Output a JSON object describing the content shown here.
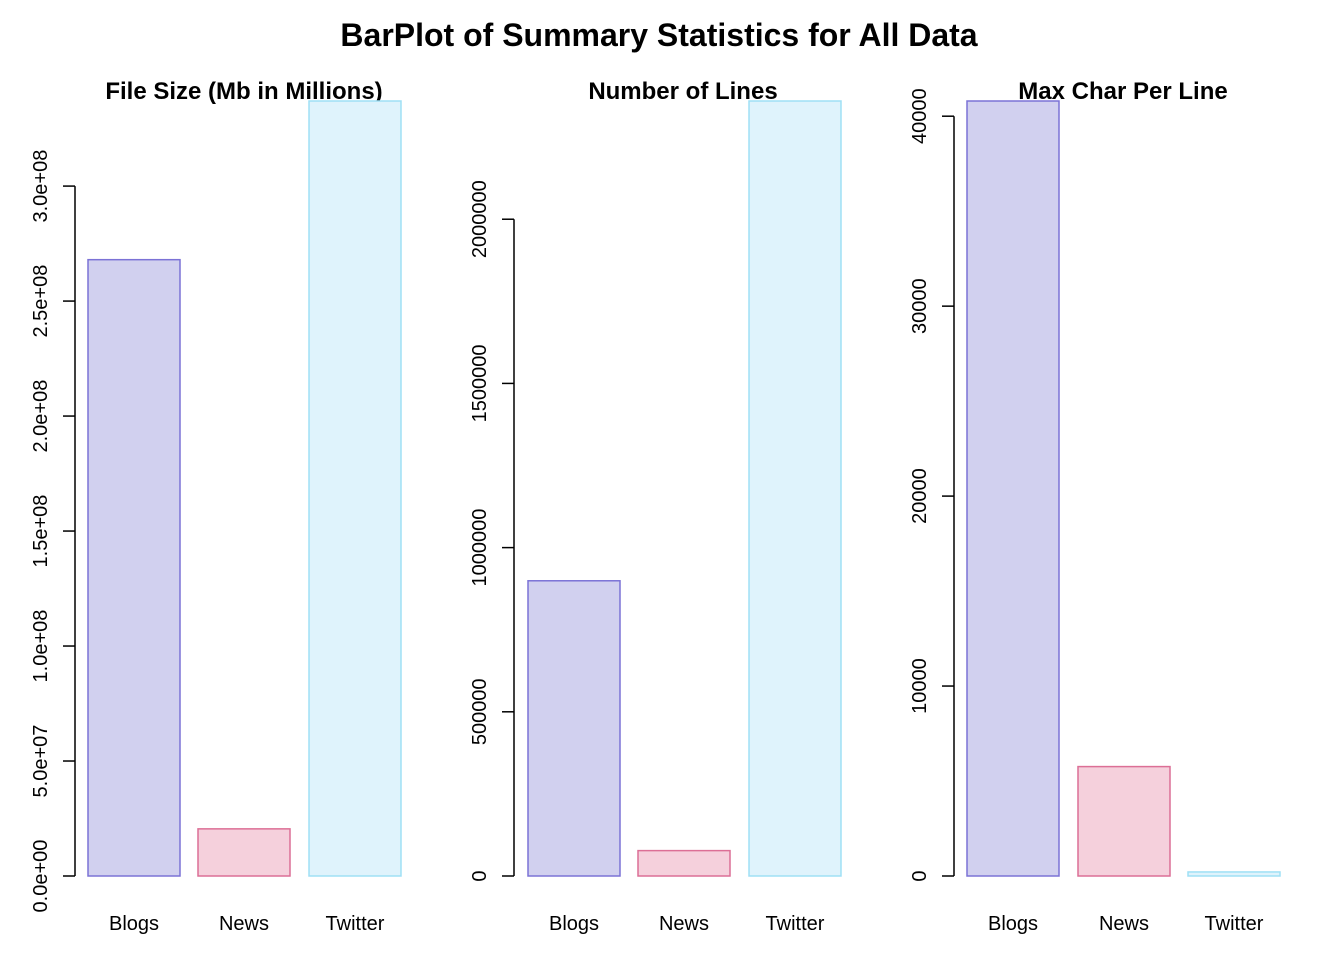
{
  "title": "BarPlot of Summary Statistics for All Data",
  "colors": {
    "blogs_fill": "#d1d0ef",
    "blogs_stroke": "#7b72d6",
    "news_fill": "#f5d0dc",
    "news_stroke": "#dc6f96",
    "twitter_fill": "#dff3fc",
    "twitter_stroke": "#9fe0f5"
  },
  "chart_data": [
    {
      "type": "bar",
      "title": "File Size (Mb in Millions)",
      "categories": [
        "Blogs",
        "News",
        "Twitter"
      ],
      "values": [
        268000000,
        20500000,
        337000000
      ],
      "ylim": [
        0,
        337000000
      ],
      "yticks": [
        0,
        50000000,
        100000000,
        150000000,
        200000000,
        250000000,
        300000000
      ],
      "yticklabels": [
        "0.0e+00",
        "5.0e+07",
        "1.0e+08",
        "1.5e+08",
        "2.0e+08",
        "2.5e+08",
        "3.0e+08"
      ],
      "grid": false
    },
    {
      "type": "bar",
      "title": "Number of Lines",
      "categories": [
        "Blogs",
        "News",
        "Twitter"
      ],
      "values": [
        899000,
        77300,
        2360000
      ],
      "ylim": [
        0,
        2360000
      ],
      "yticks": [
        0,
        500000,
        1000000,
        1500000,
        2000000
      ],
      "yticklabels": [
        "0",
        "500000",
        "1000000",
        "1500000",
        "2000000"
      ],
      "grid": false
    },
    {
      "type": "bar",
      "title": "Max Char Per Line",
      "categories": [
        "Blogs",
        "News",
        "Twitter"
      ],
      "values": [
        40800,
        5760,
        213
      ],
      "ylim": [
        0,
        40800
      ],
      "yticks": [
        0,
        10000,
        20000,
        30000,
        40000
      ],
      "yticklabels": [
        "0",
        "10000",
        "20000",
        "30000",
        "40000"
      ],
      "grid": false
    }
  ]
}
